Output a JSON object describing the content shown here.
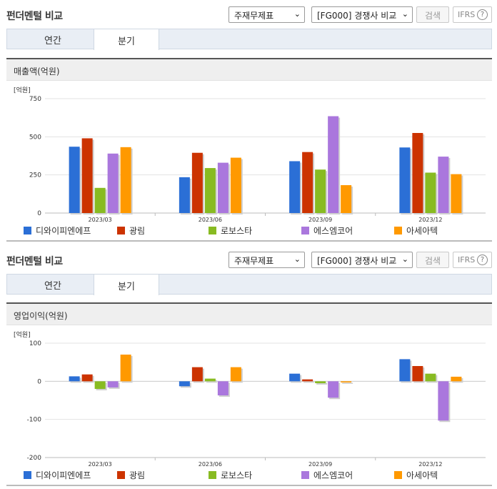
{
  "header": {
    "title": "펀더멘털 비교",
    "statement_select": "주재무제표",
    "peer_select": "[FG000] 경쟁사 비교",
    "search_label": "검색",
    "ifrs_label": "IFRS",
    "ifrs_help": "?"
  },
  "tabs": [
    {
      "label": "연간",
      "active": false
    },
    {
      "label": "분기",
      "active": true
    }
  ],
  "colors": {
    "series": [
      "#2b6fd6",
      "#cc3300",
      "#88bb22",
      "#aa77dd",
      "#ff9900"
    ]
  },
  "charts": [
    {
      "title": "매출액(억원)",
      "unit": "[억원]"
    },
    {
      "title": "영업이익(억원)",
      "unit": "[억원]"
    }
  ],
  "chart_data": [
    {
      "type": "bar",
      "title": "매출액(억원)",
      "ylabel": "[억원]",
      "categories": [
        "2023/03",
        "2023/06",
        "2023/09",
        "2023/12"
      ],
      "yticks": [
        "750",
        "500",
        "250",
        "0"
      ],
      "ylim": [
        0,
        750
      ],
      "grid": true,
      "legend": "bottom",
      "series": [
        {
          "name": "디와이피엔에프",
          "values": [
            435,
            235,
            340,
            430
          ]
        },
        {
          "name": "광림",
          "values": [
            490,
            395,
            400,
            525
          ]
        },
        {
          "name": "로보스타",
          "values": [
            165,
            295,
            285,
            265
          ]
        },
        {
          "name": "에스엠코어",
          "values": [
            390,
            330,
            635,
            370
          ]
        },
        {
          "name": "아세아텍",
          "values": [
            432,
            363,
            183,
            255
          ]
        }
      ]
    },
    {
      "type": "bar",
      "title": "영업이익(억원)",
      "ylabel": "[억원]",
      "categories": [
        "2023/03",
        "2023/06",
        "2023/09",
        "2023/12"
      ],
      "yticks": [
        "100",
        "0",
        "-100",
        "-200"
      ],
      "ylim": [
        -200,
        100
      ],
      "grid": true,
      "legend": "bottom",
      "series": [
        {
          "name": "디와이피엔에프",
          "values": [
            13,
            -13,
            20,
            58
          ]
        },
        {
          "name": "광림",
          "values": [
            18,
            37,
            5,
            40
          ]
        },
        {
          "name": "로보스타",
          "values": [
            -20,
            7,
            -5,
            20
          ]
        },
        {
          "name": "에스엠코어",
          "values": [
            -16,
            -37,
            -43,
            -103
          ]
        },
        {
          "name": "아세아텍",
          "values": [
            70,
            37,
            -3,
            12
          ]
        }
      ]
    }
  ]
}
